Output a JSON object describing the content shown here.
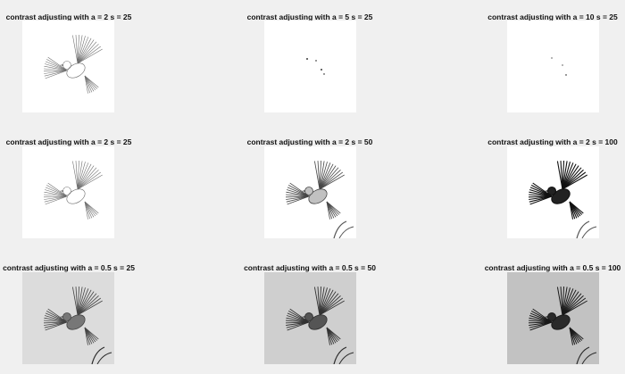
{
  "figure": {
    "panels": [
      {
        "title": "contrast adjusting with a = 2 s = 25",
        "variant": "light-sketch",
        "bg": "#ffffff"
      },
      {
        "title": "contrast adjusting with a = 5 s = 25",
        "variant": "specks",
        "bg": "#ffffff"
      },
      {
        "title": "contrast adjusting with a = 10 s = 25",
        "variant": "specks-sparse",
        "bg": "#ffffff"
      },
      {
        "title": "contrast adjusting with a = 2 s = 25",
        "variant": "light-sketch",
        "bg": "#ffffff"
      },
      {
        "title": "contrast adjusting with a = 2 s = 50",
        "variant": "mid-sketch",
        "bg": "#ffffff"
      },
      {
        "title": "contrast adjusting with a = 2 s = 100",
        "variant": "dark",
        "bg": "#ffffff"
      },
      {
        "title": "contrast adjusting with a = 0.5 s = 25",
        "variant": "gray-light",
        "bg": "#dcdcdc"
      },
      {
        "title": "contrast adjusting with a = 0.5 s = 50",
        "variant": "gray-mid",
        "bg": "#cfcfcf"
      },
      {
        "title": "contrast adjusting with a = 0.5 s = 100",
        "variant": "gray-dark",
        "bg": "#c2c2c2"
      }
    ]
  }
}
